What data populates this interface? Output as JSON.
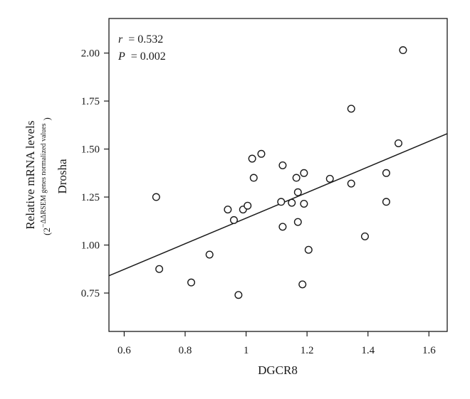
{
  "chart_data": {
    "type": "scatter",
    "xlabel": "DGCR8",
    "ylabel": "Relative mRNA levels",
    "ylabel_sub_prefix": "(2",
    "ylabel_sub_sup": "−ΔΔRSEM genes normalized values",
    "ylabel_sub_suffix": ")",
    "ylabel_gene": "Drosha",
    "xlim": [
      0.55,
      1.66
    ],
    "ylim": [
      0.55,
      2.18
    ],
    "x_ticks": [
      0.6,
      0.8,
      1.0,
      1.2,
      1.4,
      1.6
    ],
    "x_tick_labels": [
      "0.6",
      "0.8",
      "1",
      "1.2",
      "1.4",
      "1.6"
    ],
    "y_ticks": [
      0.75,
      1.0,
      1.25,
      1.5,
      1.75,
      2.0
    ],
    "y_tick_labels": [
      "0.75",
      "1.00",
      "1.25",
      "1.50",
      "1.75",
      "2.00"
    ],
    "stats": {
      "r_var": "r",
      "r_value": "= 0.532",
      "p_var": "P",
      "p_value": "= 0.002"
    },
    "trend_line": {
      "x": [
        0.55,
        1.66
      ],
      "y": [
        0.84,
        1.58
      ]
    },
    "points": [
      {
        "x": 0.705,
        "y": 1.25
      },
      {
        "x": 0.715,
        "y": 0.875
      },
      {
        "x": 0.82,
        "y": 0.805
      },
      {
        "x": 0.88,
        "y": 0.95
      },
      {
        "x": 0.94,
        "y": 1.185
      },
      {
        "x": 0.96,
        "y": 1.13
      },
      {
        "x": 0.975,
        "y": 0.74
      },
      {
        "x": 0.99,
        "y": 1.185
      },
      {
        "x": 1.005,
        "y": 1.205
      },
      {
        "x": 1.02,
        "y": 1.45
      },
      {
        "x": 1.025,
        "y": 1.35
      },
      {
        "x": 1.05,
        "y": 1.475
      },
      {
        "x": 1.115,
        "y": 1.225
      },
      {
        "x": 1.12,
        "y": 1.415
      },
      {
        "x": 1.12,
        "y": 1.095
      },
      {
        "x": 1.15,
        "y": 1.22
      },
      {
        "x": 1.165,
        "y": 1.35
      },
      {
        "x": 1.17,
        "y": 1.275
      },
      {
        "x": 1.17,
        "y": 1.12
      },
      {
        "x": 1.185,
        "y": 0.795
      },
      {
        "x": 1.19,
        "y": 1.375
      },
      {
        "x": 1.19,
        "y": 1.215
      },
      {
        "x": 1.205,
        "y": 0.975
      },
      {
        "x": 1.275,
        "y": 1.345
      },
      {
        "x": 1.345,
        "y": 1.71
      },
      {
        "x": 1.345,
        "y": 1.32
      },
      {
        "x": 1.39,
        "y": 1.045
      },
      {
        "x": 1.46,
        "y": 1.375
      },
      {
        "x": 1.46,
        "y": 1.225
      },
      {
        "x": 1.5,
        "y": 1.53
      },
      {
        "x": 1.515,
        "y": 2.015
      }
    ]
  }
}
